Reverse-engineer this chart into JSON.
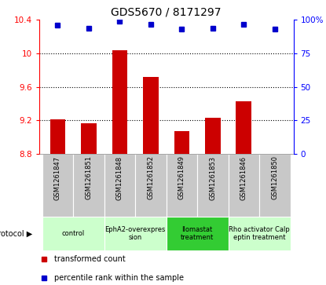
{
  "title": "GDS5670 / 8171297",
  "samples": [
    "GSM1261847",
    "GSM1261851",
    "GSM1261848",
    "GSM1261852",
    "GSM1261849",
    "GSM1261853",
    "GSM1261846",
    "GSM1261850"
  ],
  "transformed_counts": [
    9.21,
    9.17,
    10.04,
    9.72,
    9.07,
    9.23,
    9.43,
    8.8
  ],
  "percentile_ranks": [
    96,
    94,
    99,
    97,
    93,
    94,
    97,
    93
  ],
  "ylim_left": [
    8.8,
    10.4
  ],
  "ylim_right": [
    0,
    100
  ],
  "yticks_left": [
    8.8,
    9.2,
    9.6,
    10.0,
    10.4
  ],
  "yticks_right": [
    0,
    25,
    50,
    75,
    100
  ],
  "ytick_labels_left": [
    "8.8",
    "9.2",
    "9.6",
    "10",
    "10.4"
  ],
  "ytick_labels_right": [
    "0",
    "25",
    "50",
    "75",
    "100%"
  ],
  "dotted_lines": [
    9.2,
    9.6,
    10.0
  ],
  "bar_color": "#cc0000",
  "dot_color": "#0000cc",
  "bar_base": 8.8,
  "protocols": [
    {
      "label": "control",
      "samples": [
        0,
        1
      ],
      "color": "#ccffcc"
    },
    {
      "label": "EphA2-overexpres\nsion",
      "samples": [
        2,
        3
      ],
      "color": "#ccffcc"
    },
    {
      "label": "Ilomastat\ntreatment",
      "samples": [
        4,
        5
      ],
      "color": "#33cc33"
    },
    {
      "label": "Rho activator Calp\neptin treatment",
      "samples": [
        6,
        7
      ],
      "color": "#ccffcc"
    }
  ],
  "legend_items": [
    {
      "color": "#cc0000",
      "label": "transformed count"
    },
    {
      "color": "#0000cc",
      "label": "percentile rank within the sample"
    }
  ],
  "protocol_label": "protocol",
  "background_gray": "#c8c8c8",
  "tick_label_fontsize": 7.5,
  "title_fontsize": 10
}
